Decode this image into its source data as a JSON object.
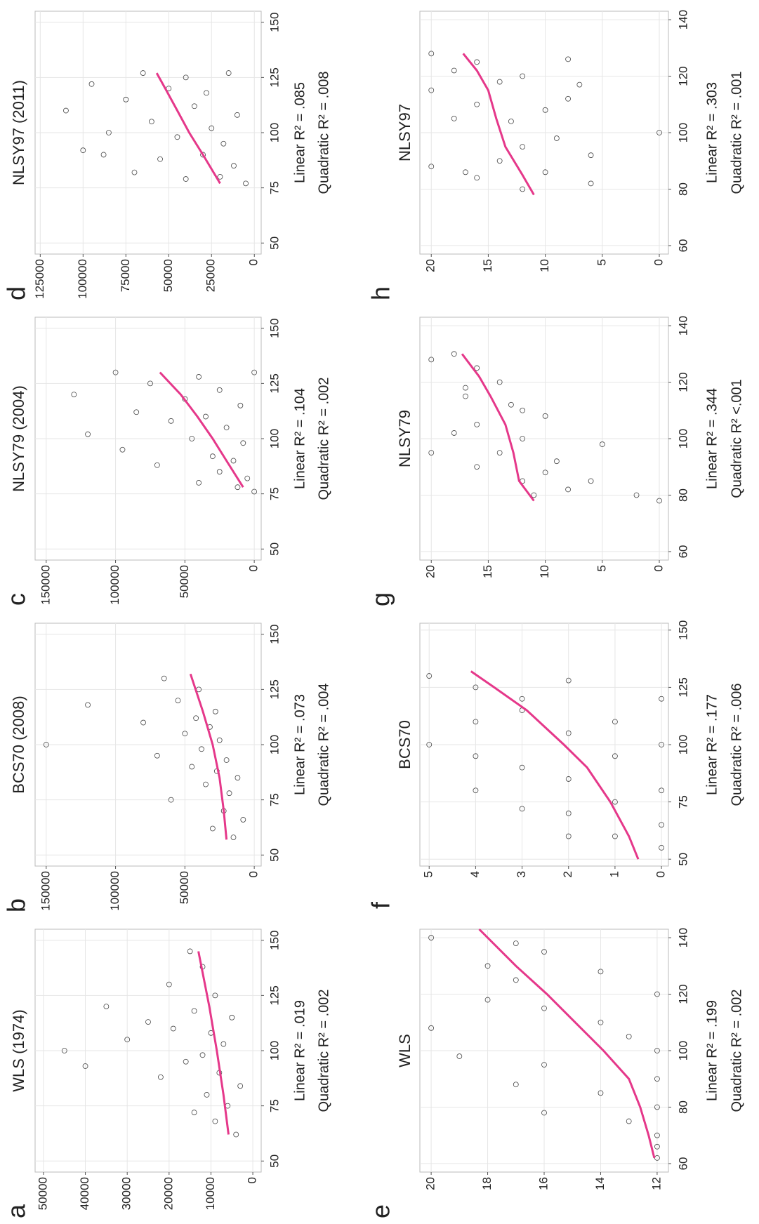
{
  "chart_data": [
    {
      "type": "scatter",
      "label": "a",
      "title": "WLS (1974)",
      "linear_label": "Linear R² = .019",
      "quadratic_label": "Quadratic R² = .002",
      "xlim": [
        45,
        155
      ],
      "xticks": [
        50,
        75,
        100,
        125,
        150
      ],
      "ylim": [
        -2000,
        52000
      ],
      "yticks": [
        0,
        10000,
        20000,
        30000,
        40000,
        50000
      ],
      "grid": true,
      "point_color": "#444444",
      "points": {
        "x": [
          62,
          68,
          72,
          75,
          80,
          84,
          88,
          90,
          93,
          95,
          98,
          100,
          103,
          105,
          108,
          110,
          113,
          115,
          118,
          120,
          125,
          130,
          138,
          145
        ],
        "y": [
          4000,
          9000,
          14000,
          6000,
          11000,
          3000,
          22000,
          8000,
          40000,
          16000,
          12000,
          45000,
          7000,
          30000,
          10000,
          19000,
          25000,
          5000,
          14000,
          35000,
          9000,
          20000,
          12000,
          15000
        ]
      },
      "fit": {
        "color": "#e5388a",
        "x": [
          62,
          80,
          100,
          120,
          145
        ],
        "y": [
          5800,
          7000,
          8600,
          10400,
          13000
        ]
      }
    },
    {
      "type": "scatter",
      "label": "b",
      "title": "BCS70 (2008)",
      "linear_label": "Linear R² = .073",
      "quadratic_label": "Quadratic R² = .004",
      "xlim": [
        45,
        155
      ],
      "xticks": [
        50,
        75,
        100,
        125,
        150
      ],
      "ylim": [
        -5000,
        158000
      ],
      "yticks": [
        0,
        50000,
        100000,
        150000
      ],
      "grid": true,
      "point_color": "#444444",
      "points": {
        "x": [
          58,
          62,
          66,
          70,
          75,
          78,
          82,
          85,
          88,
          90,
          93,
          95,
          98,
          100,
          102,
          105,
          108,
          110,
          112,
          115,
          118,
          120,
          125,
          130
        ],
        "y": [
          15000,
          30000,
          8000,
          22000,
          60000,
          18000,
          35000,
          12000,
          27000,
          45000,
          20000,
          70000,
          38000,
          150000,
          25000,
          50000,
          32000,
          80000,
          42000,
          28000,
          120000,
          55000,
          40000,
          65000
        ]
      },
      "fit": {
        "color": "#e5388a",
        "x": [
          57,
          70,
          85,
          100,
          115,
          132
        ],
        "y": [
          20000,
          22000,
          25000,
          30000,
          37000,
          46000
        ]
      }
    },
    {
      "type": "scatter",
      "label": "c",
      "title": "NLSY79 (2004)",
      "linear_label": "Linear R² = .104",
      "quadratic_label": "Quadratic R² = .002",
      "xlim": [
        45,
        155
      ],
      "xticks": [
        50,
        75,
        100,
        125,
        150
      ],
      "ylim": [
        -5000,
        158000
      ],
      "yticks": [
        0,
        50000,
        100000,
        150000
      ],
      "grid": true,
      "point_color": "#444444",
      "points": {
        "x": [
          76,
          78,
          80,
          82,
          85,
          88,
          90,
          92,
          95,
          98,
          100,
          102,
          105,
          108,
          110,
          112,
          115,
          118,
          120,
          122,
          125,
          128,
          130,
          130
        ],
        "y": [
          0,
          12000,
          40000,
          5000,
          25000,
          70000,
          15000,
          30000,
          95000,
          8000,
          45000,
          120000,
          20000,
          60000,
          35000,
          85000,
          10000,
          50000,
          130000,
          25000,
          75000,
          40000,
          100000,
          0
        ]
      },
      "fit": {
        "color": "#e5388a",
        "x": [
          78,
          90,
          100,
          110,
          120,
          130
        ],
        "y": [
          8000,
          20000,
          30000,
          41000,
          53000,
          68000
        ]
      }
    },
    {
      "type": "scatter",
      "label": "d",
      "title": "NLSY97 (2011)",
      "linear_label": "Linear R² = .085",
      "quadratic_label": "Quadratic R² = .008",
      "xlim": [
        45,
        155
      ],
      "xticks": [
        50,
        75,
        100,
        125,
        150
      ],
      "ylim": [
        -4000,
        128000
      ],
      "yticks": [
        0,
        25000,
        50000,
        75000,
        100000,
        125000
      ],
      "grid": true,
      "point_color": "#444444",
      "points": {
        "x": [
          77,
          79,
          80,
          82,
          85,
          88,
          90,
          92,
          95,
          98,
          100,
          102,
          105,
          108,
          110,
          112,
          115,
          118,
          120,
          122,
          125,
          127,
          127,
          90
        ],
        "y": [
          5000,
          40000,
          20000,
          70000,
          12000,
          55000,
          30000,
          100000,
          18000,
          45000,
          85000,
          25000,
          60000,
          10000,
          110000,
          35000,
          75000,
          28000,
          50000,
          95000,
          40000,
          15000,
          65000,
          88000
        ]
      },
      "fit": {
        "color": "#e5388a",
        "x": [
          77,
          90,
          100,
          110,
          120,
          127
        ],
        "y": [
          20000,
          30000,
          38000,
          45000,
          52000,
          57000
        ]
      }
    },
    {
      "type": "scatter",
      "label": "e",
      "title": "WLS",
      "linear_label": "Linear R² = .199",
      "quadratic_label": "Quadratic R² = .002",
      "xlim": [
        57,
        143
      ],
      "xticks": [
        60,
        80,
        100,
        120,
        140
      ],
      "ylim": [
        11.6,
        20.4
      ],
      "yticks": [
        12,
        14,
        16,
        18,
        20
      ],
      "grid": true,
      "point_color": "#444444",
      "points": {
        "x": [
          62,
          66,
          70,
          75,
          80,
          85,
          90,
          95,
          100,
          105,
          110,
          115,
          120,
          125,
          130,
          135,
          140,
          78,
          88,
          98,
          108,
          118,
          128,
          138
        ],
        "y": [
          12,
          12,
          12,
          13,
          12,
          14,
          12,
          16,
          12,
          13,
          14,
          16,
          12,
          17,
          18,
          16,
          20,
          16,
          17,
          19,
          20,
          18,
          14,
          17
        ]
      },
      "fit": {
        "color": "#e5388a",
        "x": [
          62,
          70,
          80,
          90,
          100,
          110,
          120,
          130,
          143
        ],
        "y": [
          12.1,
          12.3,
          12.6,
          13.0,
          13.9,
          14.9,
          15.9,
          17.0,
          18.3
        ]
      }
    },
    {
      "type": "scatter",
      "label": "f",
      "title": "BCS70",
      "linear_label": "Linear R² = .177",
      "quadratic_label": "Quadratic R² = .006",
      "xlim": [
        47,
        153
      ],
      "xticks": [
        50,
        75,
        100,
        125,
        150
      ],
      "ylim": [
        -0.15,
        5.2
      ],
      "yticks": [
        0,
        1,
        2,
        3,
        4,
        5
      ],
      "grid": true,
      "point_color": "#444444",
      "points": {
        "x": [
          55,
          60,
          65,
          70,
          75,
          80,
          85,
          90,
          95,
          100,
          105,
          110,
          115,
          120,
          125,
          130,
          60,
          80,
          100,
          120,
          72,
          95,
          110,
          128
        ],
        "y": [
          0,
          1,
          0,
          2,
          1,
          0,
          2,
          3,
          1,
          0,
          2,
          4,
          3,
          0,
          4,
          5,
          2,
          4,
          5,
          3,
          3,
          4,
          1,
          2
        ]
      },
      "fit": {
        "color": "#e5388a",
        "x": [
          50,
          60,
          75,
          90,
          100,
          115,
          125,
          132
        ],
        "y": [
          0.5,
          0.7,
          1.1,
          1.6,
          2.1,
          2.9,
          3.6,
          4.1
        ]
      }
    },
    {
      "type": "scatter",
      "label": "g",
      "title": "NLSY79",
      "linear_label": "Linear R² = .344",
      "quadratic_label": "Quadratic R² <.001",
      "xlim": [
        57,
        143
      ],
      "xticks": [
        60,
        80,
        100,
        120,
        140
      ],
      "ylim": [
        -0.8,
        21
      ],
      "yticks": [
        0,
        5,
        10,
        15,
        20
      ],
      "grid": true,
      "point_color": "#444444",
      "points": {
        "x": [
          78,
          80,
          82,
          85,
          88,
          90,
          95,
          100,
          105,
          110,
          115,
          120,
          125,
          130,
          80,
          85,
          92,
          98,
          108,
          112,
          118,
          128,
          95,
          102
        ],
        "y": [
          0,
          2,
          8,
          12,
          10,
          16,
          14,
          12,
          16,
          12,
          17,
          14,
          16,
          18,
          11,
          6,
          9,
          5,
          10,
          13,
          17,
          20,
          20,
          18
        ]
      },
      "fit": {
        "color": "#e5388a",
        "x": [
          78,
          85,
          95,
          105,
          115,
          122,
          130
        ],
        "y": [
          11,
          12.3,
          12.8,
          13.5,
          14.8,
          15.8,
          17.3
        ]
      }
    },
    {
      "type": "scatter",
      "label": "h",
      "title": "NLSY97",
      "linear_label": "Linear R² = .303",
      "quadratic_label": "Quadratic R² = .001",
      "xlim": [
        57,
        143
      ],
      "xticks": [
        60,
        80,
        100,
        120,
        140
      ],
      "ylim": [
        -0.8,
        21
      ],
      "yticks": [
        0,
        5,
        10,
        15,
        20
      ],
      "grid": true,
      "point_color": "#444444",
      "points": {
        "x": [
          80,
          82,
          84,
          86,
          88,
          90,
          95,
          100,
          105,
          110,
          112,
          115,
          118,
          120,
          122,
          125,
          128,
          92,
          98,
          108,
          117,
          126,
          86,
          104
        ],
        "y": [
          12,
          6,
          16,
          10,
          20,
          14,
          12,
          0,
          18,
          16,
          8,
          20,
          14,
          12,
          18,
          16,
          20,
          6,
          9,
          10,
          7,
          8,
          17,
          13
        ]
      },
      "fit": {
        "color": "#e5388a",
        "x": [
          78,
          85,
          95,
          105,
          115,
          122,
          128
        ],
        "y": [
          11,
          12,
          13.5,
          14.3,
          15,
          16,
          17.2
        ]
      }
    }
  ]
}
